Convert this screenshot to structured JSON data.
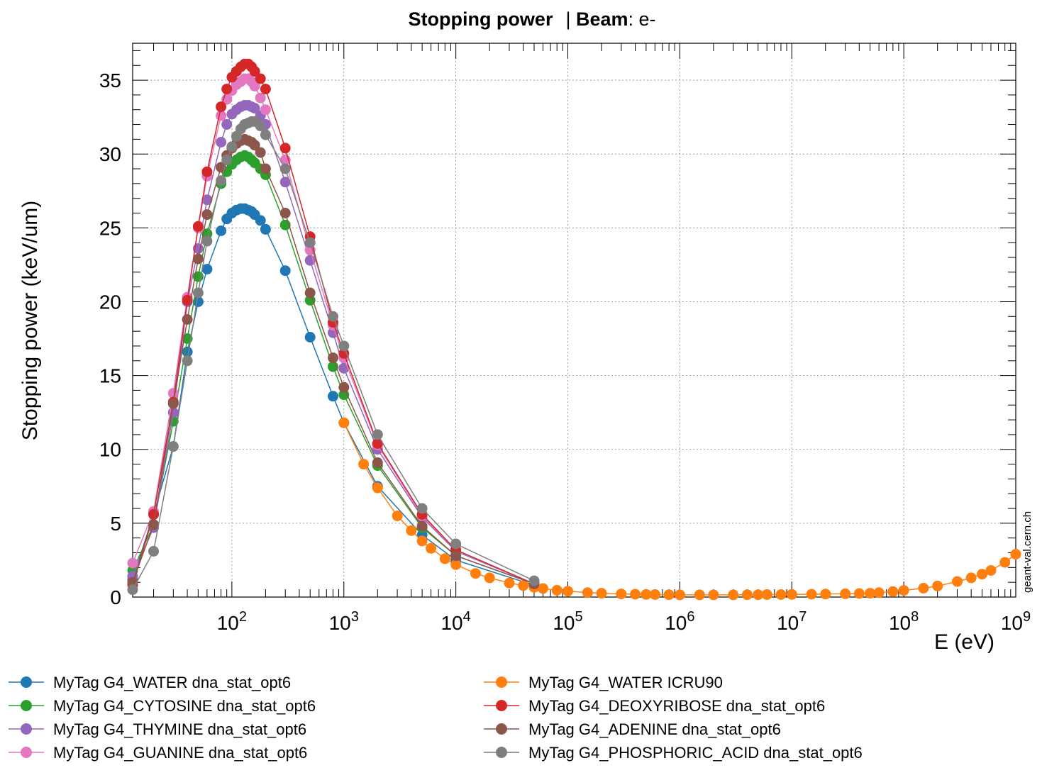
{
  "title": {
    "main": "Stopping power",
    "sep": "| ",
    "beam_label": "Beam",
    "beam_value": ": e-"
  },
  "watermark": "geant-val.cern.ch",
  "chart_data": {
    "type": "line",
    "xlabel": "E (eV)",
    "ylabel": "Stopping power (keV/um)",
    "x_scale": "log",
    "xlim": [
      13,
      1000000000
    ],
    "ylim": [
      0,
      37.5
    ],
    "y_ticks": [
      0,
      5,
      10,
      15,
      20,
      25,
      30,
      35
    ],
    "x_major_ticks": [
      100,
      1000,
      10000,
      100000,
      1000000,
      10000000,
      100000000,
      1000000000
    ],
    "x_tick_base": "10",
    "x_tick_exponents": [
      "2",
      "3",
      "4",
      "5",
      "6",
      "7",
      "8",
      "9"
    ],
    "grid": true,
    "markers": true,
    "legend_position": "bottom",
    "series": [
      {
        "name": "MyTag G4_WATER dna_stat_opt6",
        "color": "#1f77b4",
        "x": [
          13,
          20,
          30,
          40,
          50,
          60,
          80,
          90,
          100,
          110,
          120,
          130,
          140,
          150,
          160,
          180,
          200,
          300,
          500,
          800,
          1000,
          2000,
          5000,
          10000,
          50000
        ],
        "y": [
          1.2,
          5.6,
          10.2,
          16.6,
          20.0,
          22.2,
          24.8,
          25.6,
          26.0,
          26.2,
          26.3,
          26.3,
          26.2,
          26.1,
          25.9,
          25.5,
          24.9,
          22.1,
          17.6,
          13.6,
          11.8,
          7.5,
          4.2,
          2.5,
          0.8
        ]
      },
      {
        "name": "MyTag G4_CYTOSINE dna_stat_opt6",
        "color": "#2ca02c",
        "x": [
          13,
          20,
          30,
          40,
          50,
          60,
          80,
          90,
          100,
          110,
          120,
          130,
          140,
          150,
          160,
          180,
          200,
          300,
          500,
          800,
          1000,
          2000,
          5000,
          10000,
          50000
        ],
        "y": [
          1.8,
          4.9,
          11.9,
          17.5,
          21.7,
          24.6,
          28.0,
          28.8,
          29.3,
          29.6,
          29.8,
          29.9,
          29.8,
          29.6,
          29.4,
          29.0,
          28.6,
          25.2,
          20.1,
          15.6,
          13.7,
          8.9,
          4.7,
          2.8,
          0.9
        ]
      },
      {
        "name": "MyTag G4_THYMINE dna_stat_opt6",
        "color": "#9467bd",
        "x": [
          13,
          20,
          30,
          40,
          50,
          60,
          80,
          90,
          100,
          110,
          120,
          130,
          140,
          150,
          160,
          180,
          200,
          300,
          500,
          800,
          1000,
          2000,
          5000,
          10000,
          50000
        ],
        "y": [
          1.4,
          4.7,
          12.5,
          20.0,
          23.6,
          26.9,
          30.8,
          32.0,
          32.7,
          33.0,
          33.2,
          33.3,
          33.3,
          33.2,
          33.1,
          32.6,
          32.0,
          28.1,
          22.8,
          17.9,
          15.5,
          10.0,
          5.4,
          3.1,
          0.9
        ]
      },
      {
        "name": "MyTag G4_GUANINE dna_stat_opt6",
        "color": "#e377c2",
        "x": [
          13,
          20,
          30,
          40,
          50,
          60,
          80,
          90,
          100,
          110,
          120,
          130,
          140,
          150,
          160,
          180,
          200,
          300,
          500,
          800,
          1000,
          2000,
          5000,
          10000,
          50000
        ],
        "y": [
          2.3,
          5.8,
          13.8,
          20.3,
          25.0,
          28.5,
          32.6,
          33.7,
          34.3,
          34.7,
          34.9,
          35.1,
          35.1,
          34.9,
          34.6,
          33.8,
          33.0,
          29.6,
          23.5,
          18.4,
          16.2,
          10.3,
          5.5,
          3.2,
          0.9
        ]
      },
      {
        "name": "MyTag G4_WATER ICRU90",
        "color": "#ff7f0e",
        "x": [
          1000,
          1500,
          2000,
          3000,
          4000,
          5000,
          6000,
          8000,
          10000,
          15000,
          20000,
          30000,
          40000,
          50000,
          60000,
          80000,
          100000,
          150000,
          200000,
          300000,
          400000,
          500000,
          600000,
          800000,
          1000000,
          1500000,
          2000000,
          3000000,
          4000000,
          5000000,
          6000000,
          8000000,
          10000000,
          15000000,
          20000000,
          30000000,
          40000000,
          50000000,
          60000000,
          80000000,
          100000000,
          150000000,
          200000000,
          300000000,
          400000000,
          500000000,
          600000000,
          800000000,
          1000000000
        ],
        "y": [
          11.8,
          9.0,
          7.4,
          5.5,
          4.5,
          3.8,
          3.3,
          2.6,
          2.2,
          1.6,
          1.3,
          0.95,
          0.78,
          0.66,
          0.58,
          0.46,
          0.4,
          0.3,
          0.26,
          0.21,
          0.19,
          0.18,
          0.17,
          0.16,
          0.15,
          0.15,
          0.15,
          0.15,
          0.16,
          0.16,
          0.17,
          0.17,
          0.18,
          0.19,
          0.2,
          0.22,
          0.24,
          0.26,
          0.3,
          0.37,
          0.45,
          0.6,
          0.75,
          1.05,
          1.3,
          1.55,
          1.8,
          2.35,
          2.9
        ]
      },
      {
        "name": "MyTag G4_DEOXYRIBOSE dna_stat_opt6",
        "color": "#d62728",
        "x": [
          13,
          20,
          30,
          40,
          50,
          60,
          80,
          90,
          100,
          110,
          120,
          130,
          140,
          150,
          160,
          180,
          200,
          300,
          500,
          800,
          1000,
          2000,
          5000,
          10000,
          50000
        ],
        "y": [
          0.8,
          5.6,
          13.2,
          20.1,
          25.1,
          28.8,
          33.2,
          34.4,
          35.2,
          35.6,
          35.9,
          36.1,
          36.1,
          35.9,
          35.6,
          35.1,
          34.4,
          30.4,
          24.4,
          18.6,
          16.5,
          10.4,
          5.6,
          3.2,
          0.9
        ]
      },
      {
        "name": "MyTag G4_ADENINE dna_stat_opt6",
        "color": "#8c564b",
        "x": [
          13,
          20,
          30,
          40,
          50,
          60,
          80,
          90,
          100,
          110,
          120,
          130,
          140,
          150,
          160,
          180,
          200,
          300,
          500,
          800,
          1000,
          2000,
          5000,
          10000,
          50000
        ],
        "y": [
          1.0,
          4.9,
          13.1,
          18.8,
          22.9,
          25.9,
          29.1,
          29.9,
          30.4,
          30.7,
          30.9,
          31.0,
          30.9,
          30.8,
          30.6,
          30.1,
          29.0,
          26.0,
          20.6,
          16.2,
          14.2,
          9.1,
          4.8,
          2.8,
          0.9
        ]
      },
      {
        "name": "MyTag G4_PHOSPHORIC_ACID dna_stat_opt6",
        "color": "#7f7f7f",
        "x": [
          13,
          20,
          30,
          40,
          50,
          60,
          80,
          90,
          100,
          110,
          120,
          130,
          140,
          150,
          160,
          180,
          200,
          300,
          500,
          800,
          1000,
          2000,
          5000,
          10000,
          50000
        ],
        "y": [
          0.5,
          3.1,
          10.2,
          16.0,
          20.6,
          24.1,
          28.2,
          29.6,
          30.5,
          31.2,
          31.7,
          32.0,
          32.1,
          32.2,
          32.2,
          31.9,
          31.3,
          29.0,
          24.0,
          19.0,
          17.0,
          11.0,
          6.0,
          3.6,
          1.1
        ]
      }
    ]
  }
}
